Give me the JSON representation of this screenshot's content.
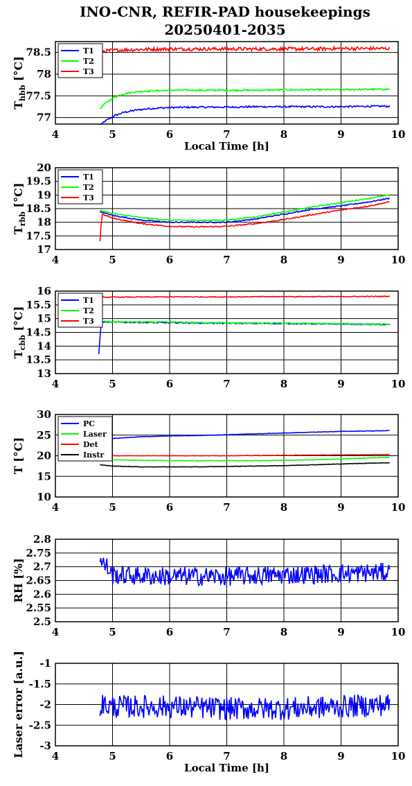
{
  "title_line1": "INO-CNR, REFIR-PAD housekeepings",
  "title_line2": "20250401-2035",
  "colors": {
    "blue": "#0000ff",
    "green": "#00ff00",
    "red": "#ff0000",
    "black": "#000000"
  },
  "chart_data": [
    {
      "type": "line",
      "ylabel_main": "T",
      "ylabel_sub": "hbb",
      "ylabel_unit": " [°C]",
      "xlabel": "Local Time [h]",
      "xlim": [
        4,
        10
      ],
      "ylim": [
        76.85,
        78.75
      ],
      "xticks": [
        4,
        5,
        6,
        7,
        8,
        9,
        10
      ],
      "xtick_labels": [
        "4",
        "5",
        "6",
        "7",
        "8",
        "9",
        "10"
      ],
      "yticks": [
        77,
        77.5,
        78,
        78.5
      ],
      "ytick_labels": [
        "77",
        "77.5",
        "78",
        "78.5"
      ],
      "legend": "top-left",
      "series": [
        {
          "name": "T1",
          "color": "#0000ff",
          "x": [
            4.78,
            4.85,
            4.95,
            5.05,
            5.2,
            5.4,
            5.6,
            5.8,
            6.0,
            6.5,
            7.0,
            7.5,
            8.0,
            8.5,
            9.0,
            9.5,
            9.85
          ],
          "y": [
            76.8,
            76.9,
            76.98,
            77.05,
            77.12,
            77.17,
            77.2,
            77.22,
            77.23,
            77.24,
            77.24,
            77.25,
            77.25,
            77.25,
            77.25,
            77.26,
            77.26
          ],
          "noise": 0.02
        },
        {
          "name": "T2",
          "color": "#00ff00",
          "x": [
            4.78,
            4.85,
            4.95,
            5.05,
            5.2,
            5.4,
            5.6,
            5.8,
            6.0,
            6.5,
            7.0,
            7.5,
            8.0,
            8.5,
            9.0,
            9.5,
            9.85
          ],
          "y": [
            77.2,
            77.3,
            77.4,
            77.48,
            77.55,
            77.59,
            77.61,
            77.62,
            77.63,
            77.63,
            77.63,
            77.63,
            77.64,
            77.64,
            77.64,
            77.65,
            77.65
          ],
          "noise": 0.02
        },
        {
          "name": "T3",
          "color": "#ff0000",
          "x": [
            4.78,
            5.0,
            5.5,
            6.0,
            6.5,
            7.0,
            7.5,
            8.0,
            8.5,
            9.0,
            9.5,
            9.85
          ],
          "y": [
            78.52,
            78.55,
            78.57,
            78.58,
            78.58,
            78.58,
            78.58,
            78.58,
            78.58,
            78.59,
            78.59,
            78.59
          ],
          "noise": 0.04
        }
      ]
    },
    {
      "type": "line",
      "ylabel_main": "T",
      "ylabel_sub": "rbb",
      "ylabel_unit": " [°C]",
      "xlabel": "",
      "xlim": [
        4,
        10
      ],
      "ylim": [
        17,
        20
      ],
      "xticks": [
        4,
        5,
        6,
        7,
        8,
        9,
        10
      ],
      "xtick_labels": [
        "4",
        "5",
        "6",
        "7",
        "8",
        "9",
        "10"
      ],
      "yticks": [
        17,
        17.5,
        18,
        18.5,
        19,
        19.5,
        20
      ],
      "ytick_labels": [
        "17",
        "17.5",
        "18",
        "18.5",
        "19",
        "19.5",
        "20"
      ],
      "legend": "top-left",
      "series": [
        {
          "name": "T1",
          "color": "#0000ff",
          "x": [
            4.78,
            4.8,
            5.0,
            5.5,
            6.0,
            6.5,
            7.0,
            7.5,
            8.0,
            8.5,
            9.0,
            9.5,
            9.85
          ],
          "y": [
            18.4,
            18.38,
            18.25,
            18.08,
            18.0,
            18.0,
            18.0,
            18.12,
            18.3,
            18.48,
            18.6,
            18.75,
            18.88
          ],
          "noise": 0.02
        },
        {
          "name": "T2",
          "color": "#00ff00",
          "x": [
            4.78,
            4.8,
            5.0,
            5.5,
            6.0,
            6.5,
            7.0,
            7.5,
            8.0,
            8.5,
            9.0,
            9.5,
            9.85
          ],
          "y": [
            18.45,
            18.43,
            18.32,
            18.17,
            18.08,
            18.07,
            18.08,
            18.2,
            18.38,
            18.56,
            18.72,
            18.88,
            19.0
          ],
          "noise": 0.02
        },
        {
          "name": "T3",
          "color": "#ff0000",
          "x": [
            4.78,
            4.8,
            4.82,
            5.0,
            5.5,
            6.0,
            6.5,
            7.0,
            7.5,
            8.0,
            8.5,
            9.0,
            9.5,
            9.85
          ],
          "y": [
            17.3,
            17.9,
            18.3,
            18.15,
            17.95,
            17.85,
            17.83,
            17.85,
            17.95,
            18.1,
            18.28,
            18.45,
            18.6,
            18.75
          ],
          "noise": 0.02
        }
      ]
    },
    {
      "type": "line",
      "ylabel_main": "T",
      "ylabel_sub": "cbb",
      "ylabel_unit": " [°C]",
      "xlabel": "",
      "xlim": [
        4,
        10
      ],
      "ylim": [
        13,
        16
      ],
      "xticks": [
        4,
        5,
        6,
        7,
        8,
        9,
        10
      ],
      "xtick_labels": [
        "4",
        "5",
        "6",
        "7",
        "8",
        "9",
        "10"
      ],
      "yticks": [
        13,
        13.5,
        14,
        14.5,
        15,
        15.5,
        16
      ],
      "ytick_labels": [
        "13",
        "13.5",
        "14",
        "14.5",
        "15",
        "15.5",
        "16"
      ],
      "legend": "top-left",
      "series": [
        {
          "name": "T1",
          "color": "#0000ff",
          "x": [
            4.76,
            4.78,
            4.8,
            4.85,
            5.0,
            6.0,
            7.0,
            8.0,
            9.0,
            9.85
          ],
          "y": [
            13.7,
            14.3,
            14.85,
            14.88,
            14.87,
            14.85,
            14.83,
            14.82,
            14.8,
            14.78
          ],
          "noise": 0.02
        },
        {
          "name": "T2",
          "color": "#00ff00",
          "x": [
            4.85,
            5.0,
            6.0,
            7.0,
            8.0,
            9.0,
            9.85
          ],
          "y": [
            14.9,
            14.88,
            14.87,
            14.84,
            14.83,
            14.81,
            14.79
          ],
          "noise": 0.025
        },
        {
          "name": "T3",
          "color": "#ff0000",
          "x": [
            4.78,
            5.0,
            6.0,
            7.0,
            8.0,
            9.0,
            9.85
          ],
          "y": [
            15.78,
            15.78,
            15.79,
            15.79,
            15.8,
            15.8,
            15.81
          ],
          "noise": 0.015
        }
      ]
    },
    {
      "type": "line",
      "ylabel_main": "T",
      "ylabel_sub": "",
      "ylabel_unit": " [°C]",
      "xlabel": "",
      "xlim": [
        4,
        10
      ],
      "ylim": [
        10,
        30
      ],
      "xticks": [
        4,
        5,
        6,
        7,
        8,
        9,
        10
      ],
      "xtick_labels": [
        "4",
        "5",
        "6",
        "7",
        "8",
        "9",
        "10"
      ],
      "yticks": [
        10,
        15,
        20,
        25,
        30
      ],
      "ytick_labels": [
        "10",
        "15",
        "20",
        "25",
        "30"
      ],
      "legend": "top-left",
      "series": [
        {
          "name": "PC",
          "color": "#0000ff",
          "x": [
            4.78,
            5.0,
            5.5,
            6.0,
            6.5,
            7.0,
            7.5,
            8.0,
            8.5,
            9.0,
            9.5,
            9.85
          ],
          "y": [
            24.0,
            24.2,
            24.6,
            24.8,
            24.9,
            25.1,
            25.3,
            25.5,
            25.7,
            25.9,
            26.0,
            26.1
          ],
          "noise": 0.05
        },
        {
          "name": "Laser",
          "color": "#00ff00",
          "x": [
            4.78,
            5.0,
            5.5,
            6.0,
            6.5,
            7.0,
            7.5,
            8.0,
            8.5,
            9.0,
            9.5,
            9.85
          ],
          "y": [
            19.4,
            19.0,
            18.9,
            18.8,
            18.8,
            18.8,
            18.8,
            18.9,
            19.0,
            19.2,
            19.5,
            19.6
          ],
          "noise": 0.05
        },
        {
          "name": "Det",
          "color": "#ff0000",
          "x": [
            4.78,
            5.0,
            6.0,
            7.0,
            8.0,
            9.0,
            9.85
          ],
          "y": [
            20.0,
            20.0,
            20.0,
            20.0,
            20.1,
            20.2,
            20.3
          ],
          "noise": 0.04
        },
        {
          "name": "Instr",
          "color": "#000000",
          "x": [
            4.78,
            5.0,
            5.5,
            6.0,
            6.5,
            7.0,
            7.5,
            8.0,
            8.5,
            9.0,
            9.5,
            9.85
          ],
          "y": [
            17.8,
            17.5,
            17.3,
            17.3,
            17.3,
            17.4,
            17.5,
            17.6,
            17.8,
            18.0,
            18.2,
            18.3
          ],
          "noise": 0.05
        }
      ]
    },
    {
      "type": "line",
      "ylabel_main": "RH [%]",
      "ylabel_sub": "",
      "ylabel_unit": "",
      "xlabel": "",
      "xlim": [
        4,
        10
      ],
      "ylim": [
        2.5,
        2.8
      ],
      "xticks": [
        4,
        5,
        6,
        7,
        8,
        9,
        10
      ],
      "xtick_labels": [
        "4",
        "5",
        "6",
        "7",
        "8",
        "9",
        "10"
      ],
      "yticks": [
        2.5,
        2.55,
        2.6,
        2.65,
        2.7,
        2.75,
        2.8
      ],
      "ytick_labels": [
        "2.5",
        "2.55",
        "2.6",
        "2.65",
        "2.7",
        "2.75",
        "2.8"
      ],
      "legend": "none",
      "series": [
        {
          "name": "",
          "color": "#0000ff",
          "x": [
            4.78,
            4.9,
            5.0,
            6.0,
            7.0,
            8.0,
            9.0,
            9.85
          ],
          "y": [
            2.72,
            2.7,
            2.67,
            2.665,
            2.665,
            2.67,
            2.675,
            2.68
          ],
          "noise": 0.035
        }
      ]
    },
    {
      "type": "line",
      "ylabel_main": "Laser error [a.u.]",
      "ylabel_sub": "",
      "ylabel_unit": "",
      "xlabel": "Local Time [h]",
      "xlim": [
        4,
        10
      ],
      "ylim": [
        -3,
        -1
      ],
      "xticks": [
        4,
        5,
        6,
        7,
        8,
        9,
        10
      ],
      "xtick_labels": [
        "4",
        "5",
        "6",
        "7",
        "8",
        "9",
        "10"
      ],
      "yticks": [
        -3,
        -2.5,
        -2,
        -1.5,
        -1
      ],
      "ytick_labels": [
        "-3",
        "-2.5",
        "-2",
        "-1.5",
        "-1"
      ],
      "legend": "none",
      "series": [
        {
          "name": "",
          "color": "#0000ff",
          "x": [
            4.78,
            5.0,
            6.0,
            7.0,
            8.0,
            9.0,
            9.85
          ],
          "y": [
            -2.0,
            -2.05,
            -2.05,
            -2.1,
            -2.1,
            -2.05,
            -2.0
          ],
          "noise": 0.28
        }
      ]
    }
  ]
}
